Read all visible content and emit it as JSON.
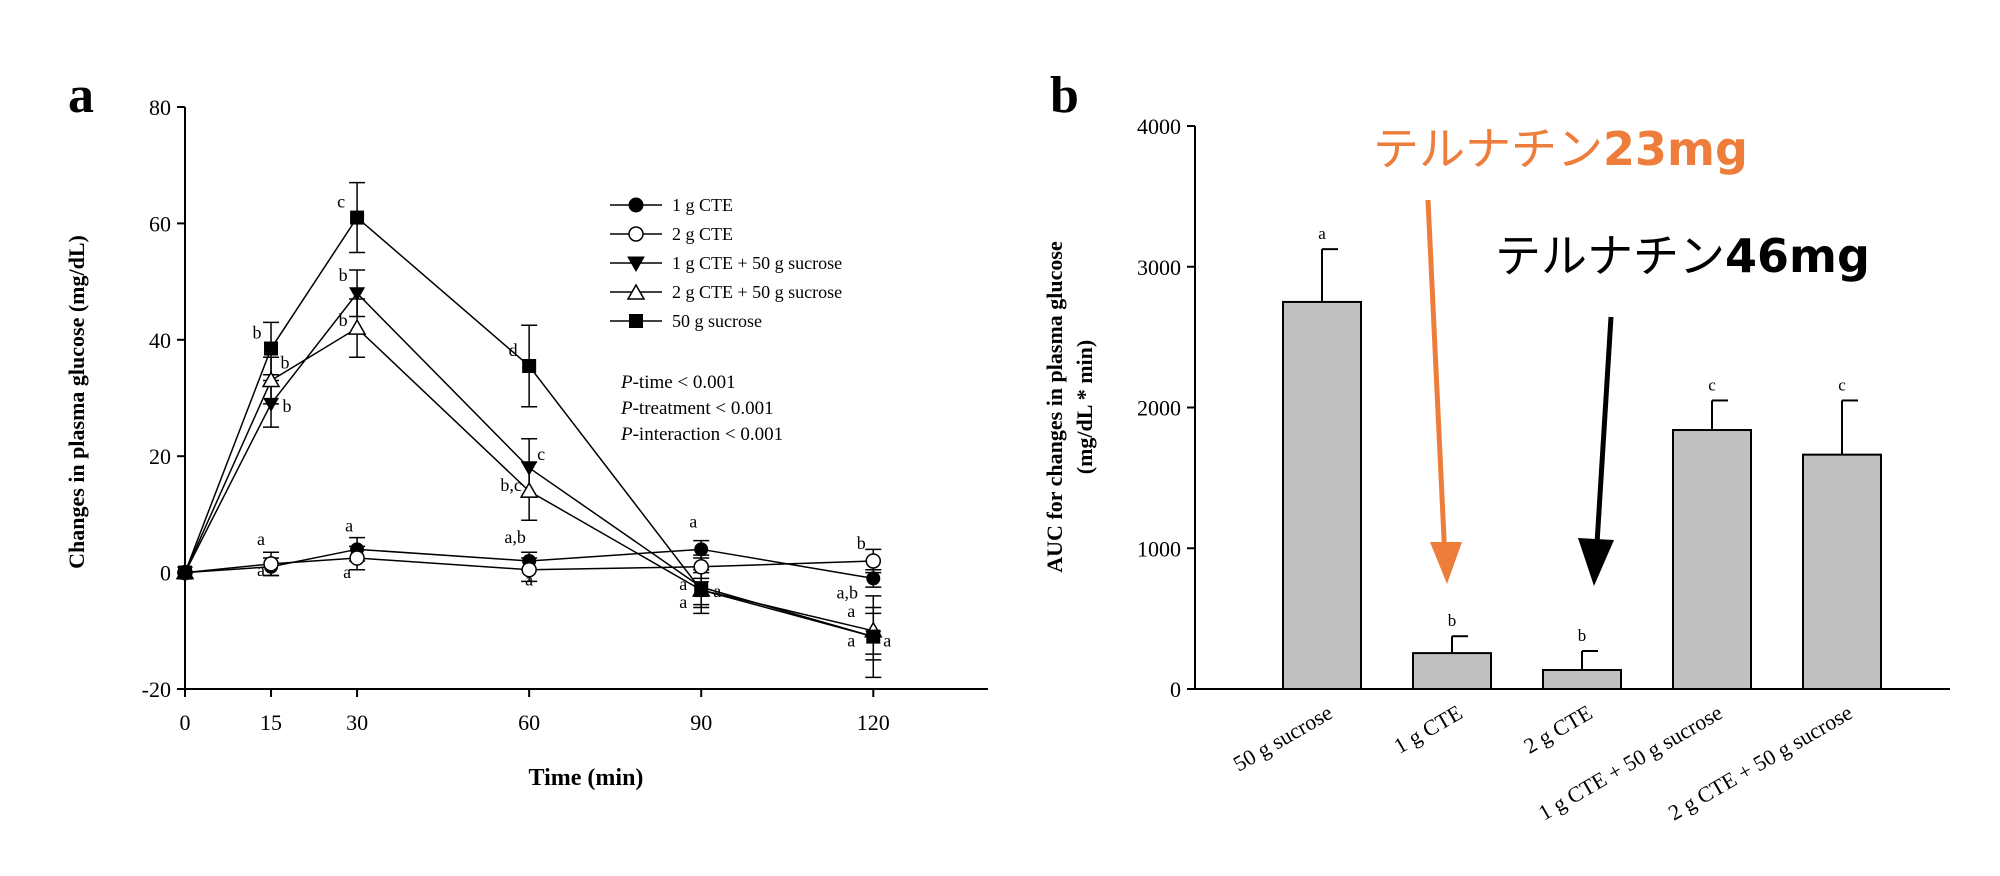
{
  "panels": {
    "a": {
      "label": "a",
      "chart_data": {
        "type": "line",
        "xlabel": "Time (min)",
        "ylabel": "Changes in plasma glucose (mg/dL)",
        "x": [
          0,
          15,
          30,
          60,
          90,
          120
        ],
        "x_tick_labels": [
          "0",
          "15",
          "30",
          "60",
          "90",
          "120"
        ],
        "xlim": [
          0,
          140
        ],
        "ylim": [
          -20,
          80
        ],
        "y_ticks": [
          -20,
          0,
          20,
          40,
          60,
          80
        ],
        "y_tick_labels": [
          "-20",
          "0",
          "20",
          "40",
          "60",
          "80"
        ],
        "series": [
          {
            "name": "1 g CTE",
            "marker": "filled-circle",
            "values": [
              0,
              1,
              4,
              2,
              4,
              -1
            ],
            "errors": [
              0,
              1.5,
              2,
              1.5,
              1.5,
              1.5
            ],
            "letters": [
              "",
              "a",
              "a",
              "a,b",
              "a",
              "a,b"
            ]
          },
          {
            "name": "2 g CTE",
            "marker": "open-circle",
            "values": [
              0,
              1.5,
              2.5,
              0.5,
              1,
              2
            ],
            "errors": [
              0,
              2,
              2,
              2,
              2,
              2
            ],
            "letters": [
              "",
              "a",
              "a",
              "a",
              "",
              "b"
            ]
          },
          {
            "name": "1 g CTE + 50 g sucrose",
            "marker": "filled-triangle-down",
            "values": [
              0,
              29,
              48,
              18,
              -2.5,
              -11
            ],
            "errors": [
              0,
              4,
              4,
              5,
              3,
              4
            ],
            "letters": [
              "",
              "b",
              "b",
              "c",
              "a",
              "a"
            ]
          },
          {
            "name": "2 g CTE + 50 g sucrose",
            "marker": "open-triangle-up",
            "values": [
              0,
              33,
              42,
              14,
              -3,
              -10
            ],
            "errors": [
              0,
              4,
              5,
              5,
              3,
              4
            ],
            "letters": [
              "",
              "b",
              "b",
              "b,c",
              "a",
              "a"
            ]
          },
          {
            "name": "50 g sucrose",
            "marker": "filled-square",
            "values": [
              0,
              38.5,
              61,
              35.5,
              -3,
              -11
            ],
            "errors": [
              0,
              4.5,
              6,
              7,
              4,
              7
            ],
            "letters": [
              "",
              "b",
              "c",
              "d",
              "a",
              "a"
            ]
          }
        ],
        "stats": [
          {
            "label": "P",
            "text": "-time < 0.001"
          },
          {
            "label": "P",
            "text": "-treatment < 0.001"
          },
          {
            "label": "P",
            "text": "-interaction < 0.001"
          }
        ],
        "legend_position": "top-right"
      }
    },
    "b": {
      "label": "b",
      "chart_data": {
        "type": "bar",
        "ylabel_line1": "AUC for changes in plasma glucose",
        "ylabel_line2": "(mg/dL * min)",
        "categories": [
          "50 g sucrose",
          "1 g CTE",
          "2 g CTE",
          "1 g CTE + 50 g sucrose",
          "2 g CTE + 50 g sucrose"
        ],
        "values": [
          2750,
          255,
          135,
          1840,
          1665
        ],
        "errors": [
          375,
          120,
          135,
          210,
          385
        ],
        "letters": [
          "a",
          "b",
          "b",
          "c",
          "c"
        ],
        "ylim": [
          0,
          4000
        ],
        "y_ticks": [
          0,
          1000,
          2000,
          3000,
          4000
        ],
        "y_tick_labels": [
          "0",
          "1000",
          "2000",
          "3000",
          "4000"
        ],
        "bar_color": "#c0c0c0"
      }
    }
  },
  "annotations": {
    "orange": {
      "text_jp": "テルナチン",
      "text_amount": "23mg",
      "color": "#ee7d3b"
    },
    "black": {
      "text_jp": "テルナチン",
      "text_amount": "46mg",
      "color": "#000000"
    }
  }
}
